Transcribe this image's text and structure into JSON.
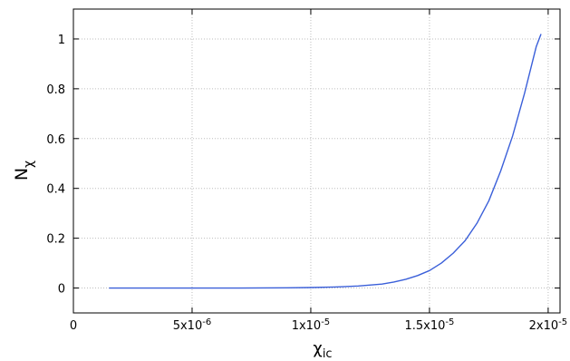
{
  "chart_data": {
    "type": "line",
    "xlabel": "χic",
    "ylabel": "Nχ",
    "xlim": [
      0,
      2.05e-05
    ],
    "ylim": [
      -0.1,
      1.12
    ],
    "x_ticks": [
      {
        "value": 0,
        "label": "0"
      },
      {
        "value": 5e-06,
        "label": "5x10-6"
      },
      {
        "value": 1e-05,
        "label": "1x10-5"
      },
      {
        "value": 1.5e-05,
        "label": "1.5x10-5"
      },
      {
        "value": 2e-05,
        "label": "2x10-5"
      }
    ],
    "y_ticks": [
      {
        "value": 0,
        "label": "0"
      },
      {
        "value": 0.2,
        "label": "0.2"
      },
      {
        "value": 0.4,
        "label": "0.4"
      },
      {
        "value": 0.6,
        "label": "0.6"
      },
      {
        "value": 0.8,
        "label": "0.8"
      },
      {
        "value": 1,
        "label": "1"
      }
    ],
    "grid": true,
    "series": [
      {
        "color": "#3a5fd9",
        "x": [
          1.5e-06,
          3e-06,
          5e-06,
          7e-06,
          9e-06,
          1e-05,
          1.1e-05,
          1.2e-05,
          1.3e-05,
          1.35e-05,
          1.4e-05,
          1.45e-05,
          1.5e-05,
          1.55e-05,
          1.6e-05,
          1.65e-05,
          1.7e-05,
          1.75e-05,
          1.8e-05,
          1.85e-05,
          1.9e-05,
          1.95e-05,
          1.97e-05
        ],
        "y": [
          0,
          0,
          0,
          0,
          0.001,
          0.002,
          0.004,
          0.008,
          0.016,
          0.024,
          0.035,
          0.05,
          0.07,
          0.1,
          0.14,
          0.19,
          0.26,
          0.35,
          0.47,
          0.61,
          0.78,
          0.97,
          1.02
        ]
      }
    ]
  }
}
